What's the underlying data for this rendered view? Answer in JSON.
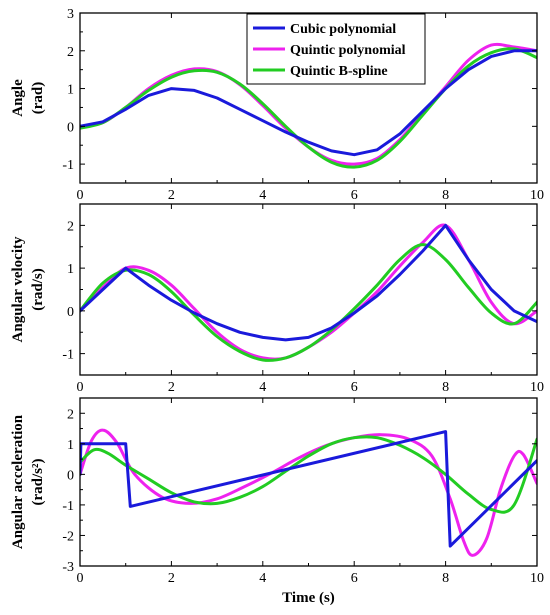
{
  "colors": {
    "cubic": "#1a1adb",
    "quintic": "#ee22ee",
    "bspline": "#22cc22"
  },
  "chart_data": [
    {
      "type": "line",
      "ylabel_lines": [
        "Angle",
        "(rad)"
      ],
      "xlim": [
        0,
        10
      ],
      "ylim": [
        -1.5,
        3
      ],
      "xticks": [
        "0",
        "2",
        "4",
        "6",
        "8",
        "10"
      ],
      "yticks": [
        "-1",
        "0",
        "1",
        "2",
        "3"
      ],
      "ytick_values": [
        -1,
        0,
        1,
        2,
        3
      ],
      "legend": {
        "placement": "top-center",
        "entries": [
          "Cubic polynomial",
          "Quintic polynomial",
          "Quintic B-spline"
        ]
      },
      "series": [
        {
          "name": "Cubic polynomial",
          "color_key": "cubic",
          "x": [
            0,
            0.5,
            1,
            1.5,
            2,
            2.5,
            3,
            3.5,
            4,
            4.5,
            5,
            5.5,
            6,
            6.5,
            7,
            7.5,
            8,
            8.5,
            9,
            9.5,
            10
          ],
          "y": [
            0,
            0.12,
            0.45,
            0.82,
            1.0,
            0.95,
            0.75,
            0.45,
            0.15,
            -0.15,
            -0.42,
            -0.65,
            -0.75,
            -0.62,
            -0.2,
            0.4,
            1.0,
            1.5,
            1.85,
            2.0,
            2.0
          ]
        },
        {
          "name": "Quintic polynomial",
          "color_key": "quintic",
          "x": [
            0,
            0.5,
            1,
            1.5,
            2,
            2.5,
            3,
            3.5,
            4,
            4.5,
            5,
            5.5,
            6,
            6.5,
            7,
            7.5,
            8,
            8.5,
            9,
            9.5,
            10
          ],
          "y": [
            0,
            0.1,
            0.5,
            1.0,
            1.35,
            1.52,
            1.45,
            1.1,
            0.55,
            -0.05,
            -0.55,
            -0.9,
            -1.0,
            -0.85,
            -0.35,
            0.35,
            1.05,
            1.75,
            2.15,
            2.1,
            2.0
          ]
        },
        {
          "name": "Quintic B-spline",
          "color_key": "bspline",
          "x": [
            0,
            0.5,
            1,
            1.5,
            2,
            2.5,
            3,
            3.5,
            4,
            4.5,
            5,
            5.5,
            6,
            6.5,
            7,
            7.5,
            8,
            8.5,
            9,
            9.5,
            10
          ],
          "y": [
            -0.05,
            0.1,
            0.5,
            0.95,
            1.3,
            1.47,
            1.43,
            1.12,
            0.6,
            0.0,
            -0.55,
            -0.95,
            -1.08,
            -0.9,
            -0.4,
            0.3,
            1.0,
            1.6,
            1.95,
            2.05,
            1.82
          ]
        }
      ]
    },
    {
      "type": "line",
      "ylabel_lines": [
        "Angular velocity",
        "(rad/s)"
      ],
      "xlim": [
        0,
        10
      ],
      "ylim": [
        -1.5,
        2.5
      ],
      "xticks": [
        "0",
        "2",
        "4",
        "6",
        "8",
        "10"
      ],
      "yticks": [
        "-1",
        "0",
        "1",
        "2"
      ],
      "ytick_values": [
        -1,
        0,
        1,
        2
      ],
      "series": [
        {
          "name": "Cubic polynomial",
          "color_key": "cubic",
          "x": [
            0,
            1,
            1.5,
            2,
            2.5,
            3,
            3.5,
            4,
            4.5,
            5,
            5.5,
            6,
            6.5,
            7,
            7.5,
            8,
            8.5,
            9,
            9.5,
            10
          ],
          "y": [
            0,
            1.0,
            0.6,
            0.25,
            -0.05,
            -0.3,
            -0.5,
            -0.62,
            -0.68,
            -0.62,
            -0.4,
            -0.05,
            0.35,
            0.85,
            1.4,
            2.0,
            1.2,
            0.5,
            0.0,
            -0.25
          ]
        },
        {
          "name": "Quintic polynomial",
          "color_key": "quintic",
          "x": [
            0,
            0.5,
            1,
            1.5,
            2,
            2.5,
            3,
            3.5,
            4,
            4.5,
            5,
            5.5,
            6,
            6.5,
            7,
            7.5,
            8,
            8.5,
            9,
            9.5,
            10
          ],
          "y": [
            0,
            0.55,
            1.0,
            0.95,
            0.6,
            0.05,
            -0.5,
            -0.9,
            -1.1,
            -1.1,
            -0.85,
            -0.5,
            -0.05,
            0.45,
            1.05,
            1.6,
            2.0,
            1.2,
            0.2,
            -0.3,
            0.0
          ]
        },
        {
          "name": "Quintic B-spline",
          "color_key": "bspline",
          "x": [
            0,
            0.5,
            1,
            1.5,
            2,
            2.5,
            3,
            3.5,
            4,
            4.5,
            5,
            5.5,
            6,
            6.5,
            7,
            7.5,
            8,
            8.5,
            9,
            9.5,
            10
          ],
          "y": [
            0,
            0.65,
            0.95,
            0.85,
            0.45,
            -0.1,
            -0.6,
            -0.95,
            -1.15,
            -1.1,
            -0.85,
            -0.45,
            0.05,
            0.6,
            1.2,
            1.55,
            1.2,
            0.55,
            -0.05,
            -0.3,
            0.2
          ]
        }
      ]
    },
    {
      "type": "line",
      "ylabel_lines": [
        "Angular acceleration",
        "(rad/s²)"
      ],
      "xlabel": "Time (s)",
      "xlim": [
        0,
        10
      ],
      "ylim": [
        -3,
        2.5
      ],
      "xticks": [
        "0",
        "2",
        "4",
        "6",
        "8",
        "10"
      ],
      "yticks": [
        "-3",
        "-2",
        "-1",
        "0",
        "1",
        "2"
      ],
      "ytick_values": [
        -3,
        -2,
        -1,
        0,
        1,
        2
      ],
      "series": [
        {
          "name": "Cubic polynomial",
          "color_key": "cubic",
          "x": [
            0,
            0.02,
            1.0,
            1.1,
            8.0,
            8.1,
            10
          ],
          "y": [
            0,
            1.0,
            1.0,
            -1.05,
            1.4,
            -2.35,
            0.45
          ]
        },
        {
          "name": "Quintic polynomial",
          "color_key": "quintic",
          "x": [
            0,
            0.25,
            0.5,
            0.8,
            1.2,
            1.8,
            2.4,
            3.0,
            3.6,
            4.2,
            4.8,
            5.4,
            6.0,
            6.6,
            7.2,
            7.7,
            8.1,
            8.4,
            8.6,
            8.9,
            9.2,
            9.5,
            9.7,
            10
          ],
          "y": [
            0,
            1.1,
            1.45,
            1.05,
            0.0,
            -0.75,
            -0.95,
            -0.8,
            -0.4,
            0.05,
            0.55,
            0.95,
            1.2,
            1.3,
            1.15,
            0.6,
            -0.8,
            -2.2,
            -2.65,
            -2.1,
            -0.5,
            0.6,
            0.65,
            -0.3
          ]
        },
        {
          "name": "Quintic B-spline",
          "color_key": "bspline",
          "x": [
            0,
            0.3,
            0.6,
            1.0,
            1.5,
            2.0,
            2.5,
            3.0,
            3.5,
            4.0,
            4.5,
            5.0,
            5.5,
            6.0,
            6.5,
            7.0,
            7.5,
            8.0,
            8.5,
            9.0,
            9.5,
            10
          ],
          "y": [
            0.4,
            0.8,
            0.7,
            0.3,
            -0.15,
            -0.6,
            -0.9,
            -0.95,
            -0.75,
            -0.4,
            0.1,
            0.6,
            1.0,
            1.2,
            1.2,
            0.95,
            0.55,
            0.0,
            -0.65,
            -1.15,
            -1.0,
            1.15
          ]
        }
      ]
    }
  ]
}
